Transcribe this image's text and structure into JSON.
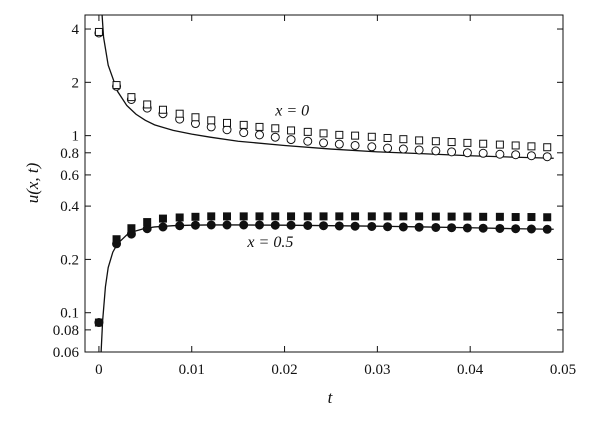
{
  "chart_data": {
    "type": "scatter",
    "title": "",
    "xlabel": "t",
    "ylabel": "u(x, t)",
    "xlim": [
      -0.0015,
      0.05
    ],
    "ylim": [
      0.06,
      4.8
    ],
    "yscale": "log",
    "grid": false,
    "x_ticks": [
      0,
      0.01,
      0.02,
      0.03,
      0.04,
      0.05
    ],
    "x_tick_labels": [
      "0",
      "0.01",
      "0.02",
      "0.03",
      "0.04",
      "0.05"
    ],
    "y_ticks": [
      0.06,
      0.08,
      0.1,
      0.2,
      0.4,
      0.6,
      0.8,
      1,
      2,
      4
    ],
    "y_tick_labels": [
      "0.06",
      "0.08",
      "0.1",
      "0.2",
      "0.4",
      "0.6",
      "0.8",
      "1",
      "2",
      "4"
    ],
    "annotations": [
      {
        "text": "x = 0",
        "x": 0.019,
        "y": 1.3
      },
      {
        "text": "x = 0.5",
        "x": 0.016,
        "y": 0.235
      }
    ],
    "series": [
      {
        "kind": "line",
        "x": [
          0.0002,
          0.0005,
          0.001,
          0.002,
          0.003,
          0.004,
          0.005,
          0.006,
          0.008,
          0.01,
          0.012,
          0.015,
          0.02,
          0.025,
          0.03,
          0.035,
          0.04,
          0.045,
          0.049
        ],
        "values": [
          6.2,
          3.6,
          2.5,
          1.78,
          1.48,
          1.32,
          1.22,
          1.15,
          1.07,
          1.02,
          0.98,
          0.93,
          0.88,
          0.84,
          0.81,
          0.79,
          0.77,
          0.755,
          0.745
        ]
      },
      {
        "marker": "open-circle",
        "x": [
          0,
          0.0019,
          0.0035,
          0.0052,
          0.0069,
          0.0087,
          0.0104,
          0.0121,
          0.0138,
          0.0156,
          0.0173,
          0.019,
          0.0207,
          0.0225,
          0.0242,
          0.0259,
          0.0276,
          0.0294,
          0.0311,
          0.0328,
          0.0345,
          0.0363,
          0.038,
          0.0397,
          0.0414,
          0.0432,
          0.0449,
          0.0466,
          0.0483
        ],
        "values": [
          3.8,
          1.9,
          1.6,
          1.43,
          1.33,
          1.24,
          1.17,
          1.12,
          1.08,
          1.04,
          1.01,
          0.98,
          0.95,
          0.93,
          0.91,
          0.895,
          0.88,
          0.865,
          0.85,
          0.84,
          0.83,
          0.82,
          0.81,
          0.8,
          0.795,
          0.785,
          0.78,
          0.77,
          0.76
        ]
      },
      {
        "marker": "open-square",
        "x": [
          0,
          0.0019,
          0.0035,
          0.0052,
          0.0069,
          0.0087,
          0.0104,
          0.0121,
          0.0138,
          0.0156,
          0.0173,
          0.019,
          0.0207,
          0.0225,
          0.0242,
          0.0259,
          0.0276,
          0.0294,
          0.0311,
          0.0328,
          0.0345,
          0.0363,
          0.038,
          0.0397,
          0.0414,
          0.0432,
          0.0449,
          0.0466,
          0.0483
        ],
        "values": [
          3.85,
          1.93,
          1.65,
          1.5,
          1.4,
          1.33,
          1.27,
          1.22,
          1.18,
          1.15,
          1.12,
          1.1,
          1.07,
          1.05,
          1.03,
          1.01,
          1.0,
          0.985,
          0.97,
          0.955,
          0.94,
          0.93,
          0.92,
          0.91,
          0.9,
          0.89,
          0.88,
          0.87,
          0.86
        ]
      },
      {
        "kind": "line",
        "x": [
          0.0002,
          0.0004,
          0.0007,
          0.001,
          0.0015,
          0.002,
          0.003,
          0.004,
          0.005,
          0.006,
          0.008,
          0.01,
          0.012,
          0.015,
          0.02,
          0.025,
          0.03,
          0.035,
          0.04,
          0.045,
          0.049
        ],
        "values": [
          0.055,
          0.09,
          0.14,
          0.18,
          0.22,
          0.245,
          0.275,
          0.29,
          0.3,
          0.305,
          0.31,
          0.312,
          0.313,
          0.313,
          0.312,
          0.31,
          0.308,
          0.305,
          0.302,
          0.298,
          0.296
        ]
      },
      {
        "marker": "filled-circle",
        "x": [
          0,
          0.0019,
          0.0035,
          0.0052,
          0.0069,
          0.0087,
          0.0104,
          0.0121,
          0.0138,
          0.0156,
          0.0173,
          0.019,
          0.0207,
          0.0225,
          0.0242,
          0.0259,
          0.0276,
          0.0294,
          0.0311,
          0.0328,
          0.0345,
          0.0363,
          0.038,
          0.0397,
          0.0414,
          0.0432,
          0.0449,
          0.0466,
          0.0483
        ],
        "values": [
          0.088,
          0.245,
          0.278,
          0.298,
          0.305,
          0.31,
          0.312,
          0.313,
          0.313,
          0.313,
          0.313,
          0.312,
          0.312,
          0.311,
          0.31,
          0.309,
          0.308,
          0.307,
          0.306,
          0.305,
          0.304,
          0.303,
          0.302,
          0.301,
          0.3,
          0.299,
          0.298,
          0.297,
          0.296
        ]
      },
      {
        "marker": "filled-square",
        "x": [
          0,
          0.0019,
          0.0035,
          0.0052,
          0.0069,
          0.0087,
          0.0104,
          0.0121,
          0.0138,
          0.0156,
          0.0173,
          0.019,
          0.0207,
          0.0225,
          0.0242,
          0.0259,
          0.0276,
          0.0294,
          0.0311,
          0.0328,
          0.0345,
          0.0363,
          0.038,
          0.0397,
          0.0414,
          0.0432,
          0.0449,
          0.0466,
          0.0483
        ],
        "values": [
          0.088,
          0.26,
          0.3,
          0.325,
          0.34,
          0.345,
          0.348,
          0.35,
          0.35,
          0.35,
          0.35,
          0.35,
          0.35,
          0.35,
          0.35,
          0.35,
          0.35,
          0.35,
          0.35,
          0.35,
          0.35,
          0.349,
          0.349,
          0.349,
          0.348,
          0.348,
          0.347,
          0.347,
          0.346
        ]
      }
    ]
  }
}
